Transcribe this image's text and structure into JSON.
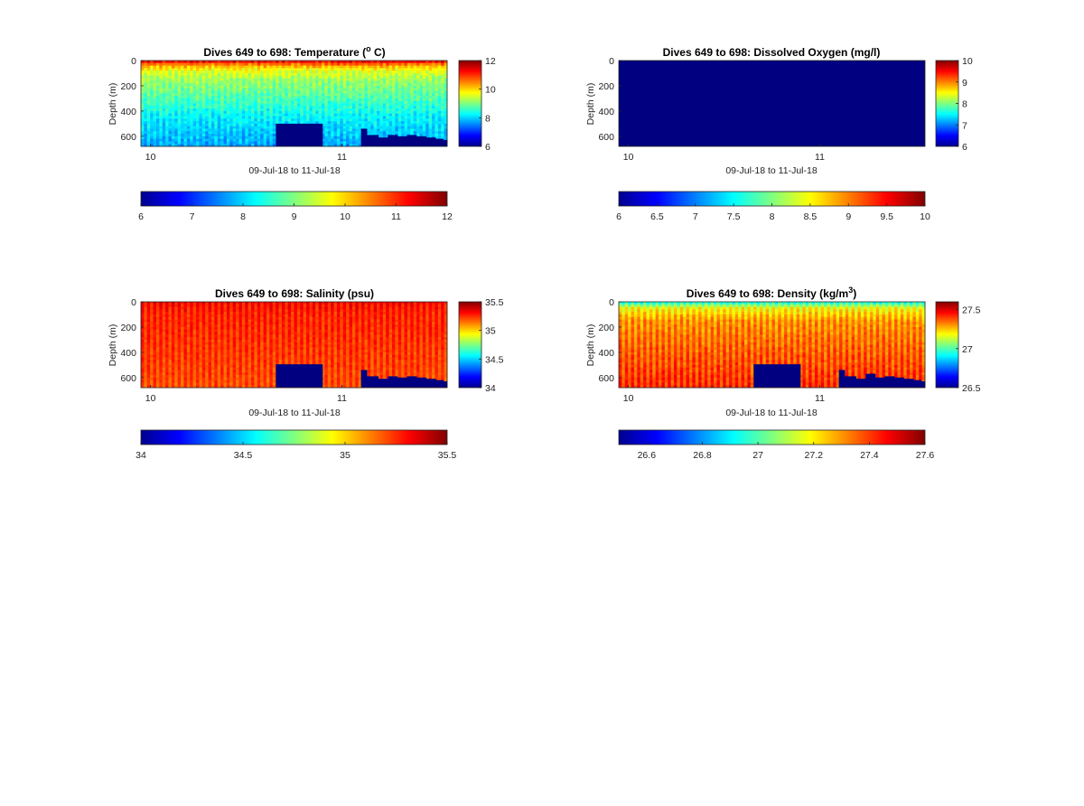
{
  "chart_data": [
    {
      "type": "heatmap",
      "variable": "temperature",
      "title": "Dives 649 to 698: Temperature (",
      "title_sup": "o",
      "title_post": " C)",
      "xlabel": "09-Jul-18 to 11-Jul-18",
      "ylabel": "Depth (m)",
      "xlim": [
        9.95,
        11.55
      ],
      "x_ticks": [
        {
          "v": 10,
          "label": "10"
        },
        {
          "v": 11,
          "label": "11"
        }
      ],
      "ylim": [
        0,
        680
      ],
      "y_ticks": [
        {
          "v": 0,
          "label": "0"
        },
        {
          "v": 200,
          "label": "200"
        },
        {
          "v": 400,
          "label": "400"
        },
        {
          "v": 600,
          "label": "600"
        }
      ],
      "colormap": "jet",
      "clim": [
        6,
        12
      ],
      "colorbar_v_ticks": [
        {
          "v": 6,
          "label": "6"
        },
        {
          "v": 8,
          "label": "8"
        },
        {
          "v": 10,
          "label": "10"
        },
        {
          "v": 12,
          "label": "12"
        }
      ],
      "colorbar_h_ticks": [
        {
          "v": 6,
          "label": "6"
        },
        {
          "v": 7,
          "label": "7"
        },
        {
          "v": 8,
          "label": "8"
        },
        {
          "v": 9,
          "label": "9"
        },
        {
          "v": 10,
          "label": "10"
        },
        {
          "v": 11,
          "label": "11"
        },
        {
          "v": 12,
          "label": "12"
        }
      ],
      "dives": 50,
      "profile": [
        [
          0,
          11.6
        ],
        [
          12,
          11.1
        ],
        [
          40,
          10.3
        ],
        [
          80,
          9.6
        ],
        [
          150,
          9.2
        ],
        [
          300,
          8.7
        ],
        [
          450,
          8.2
        ],
        [
          600,
          7.9
        ],
        [
          680,
          7.7
        ]
      ],
      "stripe_amplitude": 0.15,
      "noise": 0.25,
      "no_data": [
        {
          "x0": 10.655,
          "x1": 10.9,
          "y0": 500
        }
      ],
      "missing_bottom": [
        {
          "x": 11.1,
          "depth": 540
        },
        {
          "x": 11.13,
          "depth": 590
        },
        {
          "x": 11.19,
          "depth": 610
        },
        {
          "x": 11.24,
          "depth": 590
        },
        {
          "x": 11.29,
          "depth": 600
        },
        {
          "x": 11.34,
          "depth": 590
        },
        {
          "x": 11.39,
          "depth": 600
        },
        {
          "x": 11.44,
          "depth": 610
        },
        {
          "x": 11.49,
          "depth": 620
        },
        {
          "x": 11.53,
          "depth": 630
        }
      ]
    },
    {
      "type": "heatmap",
      "variable": "dissolved_oxygen",
      "title": "Dives 649 to 698: Dissolved Oxygen (mg/l)",
      "xlabel": "09-Jul-18 to 11-Jul-18",
      "ylabel": "Depth (m)",
      "xlim": [
        9.95,
        11.55
      ],
      "x_ticks": [
        {
          "v": 10,
          "label": "10"
        },
        {
          "v": 11,
          "label": "11"
        }
      ],
      "ylim": [
        0,
        680
      ],
      "y_ticks": [
        {
          "v": 0,
          "label": "0"
        },
        {
          "v": 200,
          "label": "200"
        },
        {
          "v": 400,
          "label": "400"
        },
        {
          "v": 600,
          "label": "600"
        }
      ],
      "colormap": "jet",
      "clim": [
        6,
        10
      ],
      "colorbar_v_ticks": [
        {
          "v": 6,
          "label": "6"
        },
        {
          "v": 7,
          "label": "7"
        },
        {
          "v": 8,
          "label": "8"
        },
        {
          "v": 9,
          "label": "9"
        },
        {
          "v": 10,
          "label": "10"
        }
      ],
      "colorbar_h_ticks": [
        {
          "v": 6,
          "label": "6"
        },
        {
          "v": 6.5,
          "label": "6.5"
        },
        {
          "v": 7,
          "label": "7"
        },
        {
          "v": 7.5,
          "label": "7.5"
        },
        {
          "v": 8,
          "label": "8"
        },
        {
          "v": 8.5,
          "label": "8.5"
        },
        {
          "v": 9,
          "label": "9"
        },
        {
          "v": 9.5,
          "label": "9.5"
        },
        {
          "v": 10,
          "label": "10"
        }
      ],
      "uniform_value": 6
    },
    {
      "type": "heatmap",
      "variable": "salinity",
      "title": "Dives 649 to 698: Salinity (psu)",
      "xlabel": "09-Jul-18 to 11-Jul-18",
      "ylabel": "Depth (m)",
      "xlim": [
        9.95,
        11.55
      ],
      "x_ticks": [
        {
          "v": 10,
          "label": "10"
        },
        {
          "v": 11,
          "label": "11"
        }
      ],
      "ylim": [
        0,
        680
      ],
      "y_ticks": [
        {
          "v": 0,
          "label": "0"
        },
        {
          "v": 200,
          "label": "200"
        },
        {
          "v": 400,
          "label": "400"
        },
        {
          "v": 600,
          "label": "600"
        }
      ],
      "colormap": "jet",
      "clim": [
        34,
        35.5
      ],
      "colorbar_v_ticks": [
        {
          "v": 34,
          "label": "34"
        },
        {
          "v": 34.5,
          "label": "34.5"
        },
        {
          "v": 35,
          "label": "35"
        },
        {
          "v": 35.5,
          "label": "35.5"
        }
      ],
      "colorbar_h_ticks": [
        {
          "v": 34,
          "label": "34"
        },
        {
          "v": 34.5,
          "label": "34.5"
        },
        {
          "v": 35,
          "label": "35"
        },
        {
          "v": 35.5,
          "label": "35.5"
        }
      ],
      "dives": 50,
      "profile": [
        [
          0,
          35.33
        ],
        [
          15,
          35.3
        ],
        [
          100,
          35.26
        ],
        [
          300,
          35.24
        ],
        [
          500,
          35.22
        ],
        [
          680,
          35.2
        ]
      ],
      "stripe_amplitude": 0.05,
      "noise": 0.03,
      "no_data": [
        {
          "x0": 10.655,
          "x1": 10.9,
          "y0": 495
        }
      ],
      "missing_bottom": [
        {
          "x": 11.1,
          "depth": 540
        },
        {
          "x": 11.13,
          "depth": 590
        },
        {
          "x": 11.19,
          "depth": 610
        },
        {
          "x": 11.24,
          "depth": 590
        },
        {
          "x": 11.29,
          "depth": 600
        },
        {
          "x": 11.34,
          "depth": 590
        },
        {
          "x": 11.39,
          "depth": 600
        },
        {
          "x": 11.44,
          "depth": 610
        },
        {
          "x": 11.49,
          "depth": 620
        },
        {
          "x": 11.53,
          "depth": 630
        }
      ]
    },
    {
      "type": "heatmap",
      "variable": "density",
      "title": "Dives 649 to 698: Density (kg/m",
      "title_sup": "3",
      "title_post": ")",
      "xlabel": "09-Jul-18 to 11-Jul-18",
      "ylabel": "Depth (m)",
      "xlim": [
        9.95,
        11.55
      ],
      "x_ticks": [
        {
          "v": 10,
          "label": "10"
        },
        {
          "v": 11,
          "label": "11"
        }
      ],
      "ylim": [
        0,
        680
      ],
      "y_ticks": [
        {
          "v": 0,
          "label": "0"
        },
        {
          "v": 200,
          "label": "200"
        },
        {
          "v": 400,
          "label": "400"
        },
        {
          "v": 600,
          "label": "600"
        }
      ],
      "colormap": "jet",
      "clim": [
        26.5,
        27.6
      ],
      "colorbar_v_ticks": [
        {
          "v": 26.5,
          "label": "26.5"
        },
        {
          "v": 27,
          "label": "27"
        },
        {
          "v": 27.5,
          "label": "27.5"
        }
      ],
      "colorbar_h_ticks": [
        {
          "v": 26.6,
          "label": "26.6"
        },
        {
          "v": 26.8,
          "label": "26.8"
        },
        {
          "v": 27,
          "label": "27"
        },
        {
          "v": 27.2,
          "label": "27.2"
        },
        {
          "v": 27.4,
          "label": "27.4"
        },
        {
          "v": 27.6,
          "label": "27.6"
        }
      ],
      "dives": 50,
      "profile": [
        [
          0,
          26.95
        ],
        [
          15,
          26.98
        ],
        [
          50,
          27.18
        ],
        [
          150,
          27.3
        ],
        [
          300,
          27.34
        ],
        [
          500,
          27.38
        ],
        [
          680,
          27.42
        ]
      ],
      "stripe_amplitude": 0.05,
      "noise": 0.03,
      "no_data": [
        {
          "x0": 10.655,
          "x1": 10.9,
          "y0": 495
        }
      ],
      "missing_bottom": [
        {
          "x": 11.1,
          "depth": 540
        },
        {
          "x": 11.13,
          "depth": 590
        },
        {
          "x": 11.19,
          "depth": 610
        },
        {
          "x": 11.24,
          "depth": 570
        },
        {
          "x": 11.29,
          "depth": 600
        },
        {
          "x": 11.34,
          "depth": 590
        },
        {
          "x": 11.39,
          "depth": 600
        },
        {
          "x": 11.44,
          "depth": 610
        },
        {
          "x": 11.49,
          "depth": 620
        },
        {
          "x": 11.53,
          "depth": 630
        }
      ]
    }
  ]
}
